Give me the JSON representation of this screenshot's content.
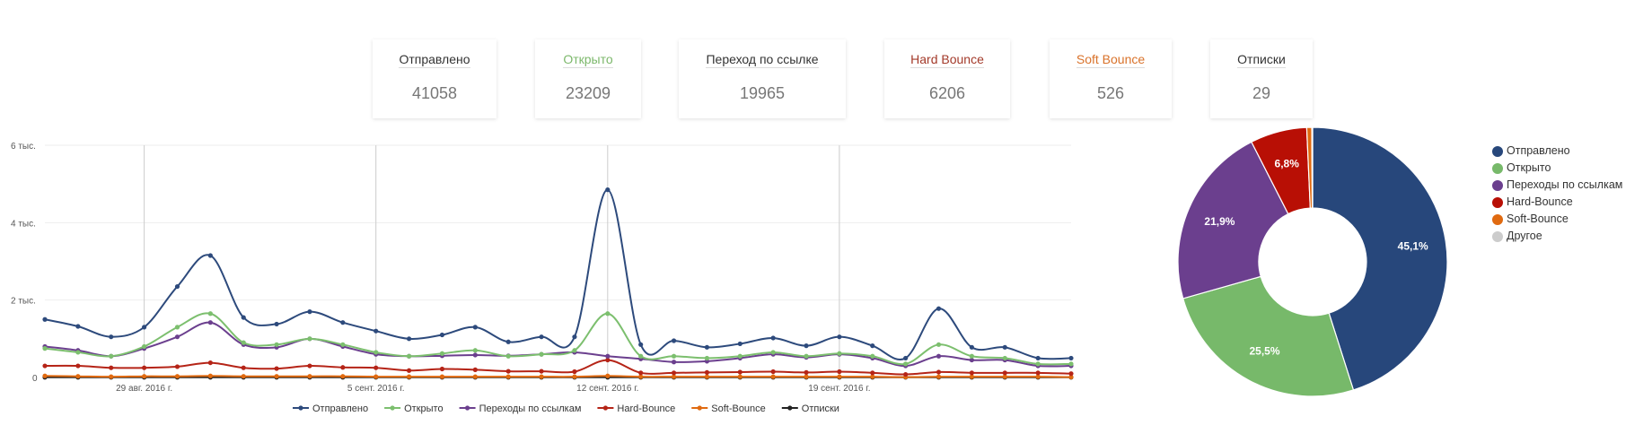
{
  "stat_cards": [
    {
      "label": "Отправлено",
      "value": "41058",
      "color": "#333333"
    },
    {
      "label": "Открыто",
      "value": "23209",
      "color": "#7cb86b"
    },
    {
      "label": "Переход по ссылке",
      "value": "19965",
      "color": "#333333"
    },
    {
      "label": "Hard Bounce",
      "value": "6206",
      "color": "#a33a2a"
    },
    {
      "label": "Soft Bounce",
      "value": "526",
      "color": "#d9722a"
    },
    {
      "label": "Отписки",
      "value": "29",
      "color": "#333333"
    }
  ],
  "chart_data": [
    {
      "type": "line",
      "title": "",
      "xlabel": "",
      "ylabel": "",
      "ylim": [
        0,
        6000
      ],
      "y_ticks": [
        0,
        2000,
        4000,
        6000
      ],
      "y_tick_labels": [
        "0",
        "2 тыс.",
        "4 тыс.",
        "6 тыс."
      ],
      "x_tick_labels": [
        "29 авг. 2016 г.",
        "5 сент. 2016 г.",
        "12 сент. 2016 г.",
        "19 сент. 2016 г."
      ],
      "x_tick_index": [
        3,
        10,
        17,
        24
      ],
      "grid": true,
      "legend_position": "bottom",
      "x": [
        "26.08",
        "27.08",
        "28.08",
        "29.08",
        "30.08",
        "31.08",
        "01.09",
        "02.09",
        "03.09",
        "04.09",
        "05.09",
        "06.09",
        "07.09",
        "08.09",
        "09.09",
        "10.09",
        "11.09",
        "12.09",
        "13.09",
        "14.09",
        "15.09",
        "16.09",
        "17.09",
        "18.09",
        "19.09",
        "20.09",
        "21.09",
        "22.09",
        "23.09",
        "24.09",
        "25.09",
        "26.09"
      ],
      "series": [
        {
          "name": "Отправлено",
          "color": "#2d4a7c",
          "values": [
            1500,
            1320,
            1050,
            1300,
            2350,
            3150,
            1550,
            1380,
            1700,
            1420,
            1200,
            1000,
            1100,
            1300,
            920,
            1050,
            1050,
            4850,
            850,
            950,
            780,
            870,
            1020,
            820,
            1050,
            820,
            500,
            1780,
            780,
            780,
            500,
            500
          ]
        },
        {
          "name": "Открыто",
          "color": "#7cbf6e",
          "values": [
            750,
            650,
            550,
            800,
            1300,
            1650,
            900,
            850,
            1000,
            850,
            650,
            550,
            620,
            700,
            550,
            600,
            700,
            1650,
            550,
            550,
            500,
            550,
            650,
            550,
            620,
            550,
            350,
            850,
            550,
            500,
            350,
            350
          ]
        },
        {
          "name": "Переходы по ссылкам",
          "color": "#6b3f8e",
          "values": [
            800,
            700,
            550,
            750,
            1050,
            1420,
            850,
            780,
            1000,
            800,
            600,
            550,
            560,
            580,
            560,
            600,
            650,
            550,
            480,
            400,
            420,
            500,
            600,
            520,
            600,
            500,
            300,
            550,
            450,
            450,
            300,
            300
          ]
        },
        {
          "name": "Hard-Bounce",
          "color": "#b52417",
          "values": [
            300,
            300,
            250,
            250,
            280,
            380,
            250,
            230,
            300,
            260,
            250,
            180,
            220,
            200,
            160,
            160,
            150,
            450,
            120,
            120,
            130,
            140,
            150,
            130,
            150,
            120,
            80,
            140,
            120,
            120,
            120,
            100
          ]
        },
        {
          "name": "Soft-Bounce",
          "color": "#e06a10",
          "values": [
            40,
            30,
            20,
            30,
            30,
            40,
            30,
            30,
            30,
            30,
            20,
            20,
            20,
            20,
            20,
            20,
            20,
            40,
            20,
            20,
            20,
            20,
            20,
            20,
            20,
            20,
            10,
            20,
            20,
            20,
            20,
            10
          ]
        },
        {
          "name": "Отписки",
          "color": "#222222",
          "values": [
            5,
            5,
            5,
            5,
            5,
            5,
            5,
            5,
            5,
            5,
            5,
            5,
            5,
            5,
            5,
            5,
            5,
            5,
            5,
            5,
            5,
            5,
            5,
            5,
            5,
            5,
            5,
            5,
            5,
            5,
            5,
            5
          ]
        }
      ]
    },
    {
      "type": "pie",
      "donut": true,
      "title": "",
      "legend_position": "right",
      "slices": [
        {
          "label": "Отправлено",
          "value": 45.1,
          "display": "45,1%",
          "color": "#27477b"
        },
        {
          "label": "Открыто",
          "value": 25.5,
          "display": "25,5%",
          "color": "#77b96a"
        },
        {
          "label": "Переходы по ссылкам",
          "value": 21.9,
          "display": "21,9%",
          "color": "#6b3f8e"
        },
        {
          "label": "Hard-Bounce",
          "value": 6.8,
          "display": "6,8%",
          "color": "#b80f05"
        },
        {
          "label": "Soft-Bounce",
          "value": 0.6,
          "display": "",
          "color": "#e06a10"
        },
        {
          "label": "Другое",
          "value": 0.1,
          "display": "",
          "color": "#cccccc"
        }
      ]
    }
  ]
}
